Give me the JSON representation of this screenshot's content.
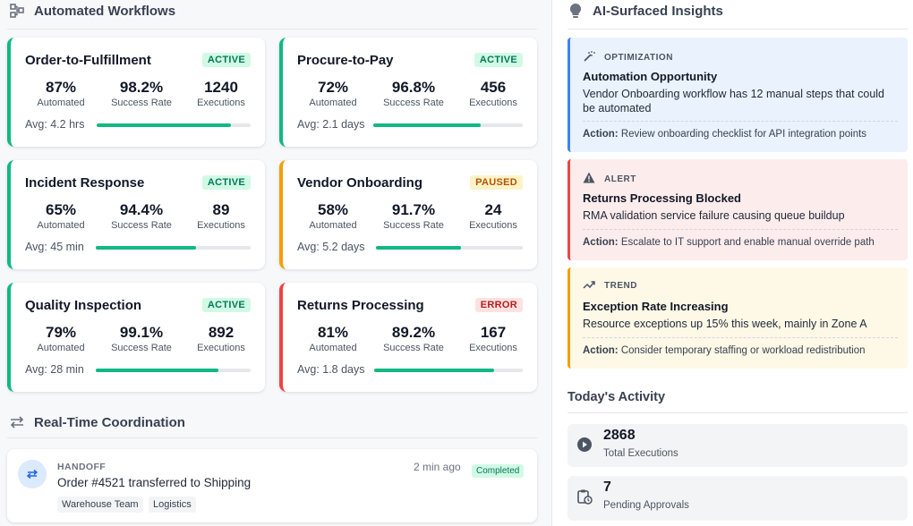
{
  "automated_workflows": {
    "heading": "Automated Workflows",
    "metric_labels": {
      "automated": "Automated",
      "success": "Success Rate",
      "executions": "Executions"
    },
    "cards": [
      {
        "title": "Order-to-Fulfillment",
        "status": "ACTIVE",
        "automated": "87%",
        "success": "98.2%",
        "executions": "1240",
        "avg": "Avg: 4.2 hrs",
        "progress": 0.87
      },
      {
        "title": "Procure-to-Pay",
        "status": "ACTIVE",
        "automated": "72%",
        "success": "96.8%",
        "executions": "456",
        "avg": "Avg: 2.1 days",
        "progress": 0.72
      },
      {
        "title": "Incident Response",
        "status": "ACTIVE",
        "automated": "65%",
        "success": "94.4%",
        "executions": "89",
        "avg": "Avg: 45 min",
        "progress": 0.65
      },
      {
        "title": "Vendor Onboarding",
        "status": "PAUSED",
        "automated": "58%",
        "success": "91.7%",
        "executions": "24",
        "avg": "Avg: 5.2 days",
        "progress": 0.58
      },
      {
        "title": "Quality Inspection",
        "status": "ACTIVE",
        "automated": "79%",
        "success": "99.1%",
        "executions": "892",
        "avg": "Avg: 28 min",
        "progress": 0.79
      },
      {
        "title": "Returns Processing",
        "status": "ERROR",
        "automated": "81%",
        "success": "89.2%",
        "executions": "167",
        "avg": "Avg: 1.8 days",
        "progress": 0.81
      }
    ]
  },
  "coordination": {
    "heading": "Real-Time Coordination",
    "items": [
      {
        "type": "HANDOFF",
        "time": "2 min ago",
        "status": "Completed",
        "message": "Order #4521 transferred to Shipping",
        "tags": [
          "Warehouse Team",
          "Logistics"
        ]
      }
    ]
  },
  "insights": {
    "heading": "AI-Surfaced Insights",
    "items": [
      {
        "type": "OPTIMIZATION",
        "title": "Automation Opportunity",
        "description": "Vendor Onboarding workflow has 12 manual steps that could be automated",
        "action_label": "Action:",
        "action": "Review onboarding checklist for API integration points",
        "icon": "magic-wand-icon"
      },
      {
        "type": "ALERT",
        "title": "Returns Processing Blocked",
        "description": "RMA validation service failure causing queue buildup",
        "action_label": "Action:",
        "action": "Escalate to IT support and enable manual override path",
        "icon": "warning-icon"
      },
      {
        "type": "TREND",
        "title": "Exception Rate Increasing",
        "description": "Resource exceptions up 15% this week, mainly in Zone A",
        "action_label": "Action:",
        "action": "Consider temporary staffing or workload redistribution",
        "icon": "trend-up-icon"
      }
    ]
  },
  "activity": {
    "heading": "Today's Activity",
    "items": [
      {
        "value": "2868",
        "label": "Total Executions",
        "icon": "play-icon"
      },
      {
        "value": "7",
        "label": "Pending Approvals",
        "icon": "clipboard-clock-icon"
      }
    ]
  },
  "colors": {
    "active": "#10b981",
    "paused": "#f59e0b",
    "error": "#ef4444",
    "optimization_bg": "#eaf2fe",
    "optimization_border": "#3b82f6",
    "alert_bg": "#fdecec",
    "alert_border": "#ef4444",
    "trend_bg": "#fef8e6",
    "trend_border": "#f59e0b"
  }
}
